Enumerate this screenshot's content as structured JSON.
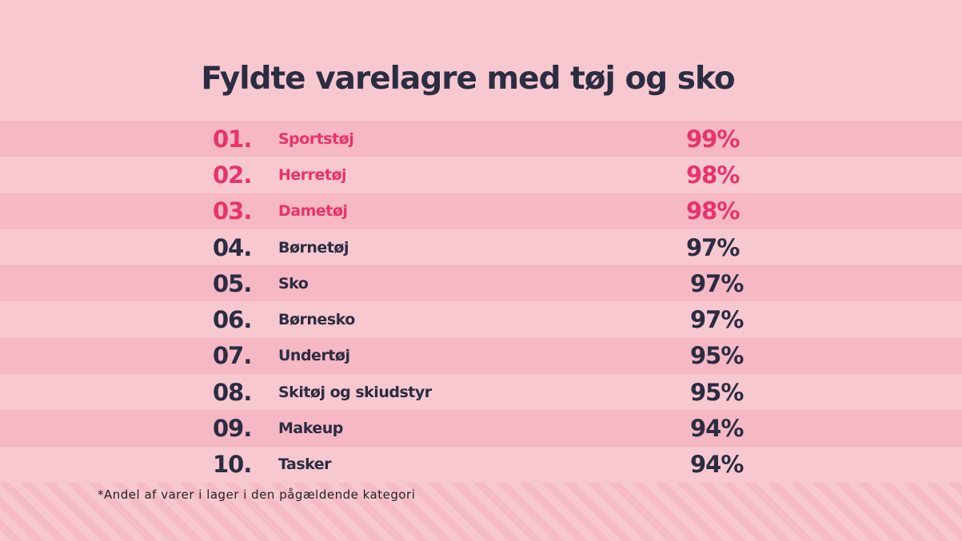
{
  "chart_data": {
    "type": "table",
    "title": "Fyldte varelagre med tøj og sko",
    "rows": [
      {
        "rank": "01.",
        "category": "Sportstøj",
        "value": "99%"
      },
      {
        "rank": "02.",
        "category": "Herretøj",
        "value": "98%"
      },
      {
        "rank": "03.",
        "category": "Dametøj",
        "value": "98%"
      },
      {
        "rank": "04.",
        "category": "Børnetøj",
        "value": "97%"
      },
      {
        "rank": "05.",
        "category": "Sko",
        "value": "97%"
      },
      {
        "rank": "06.",
        "category": "Børnesko",
        "value": "97%"
      },
      {
        "rank": "07.",
        "category": "Undertøj",
        "value": "95%"
      },
      {
        "rank": "08.",
        "category": "Skitøj og skiudstyr",
        "value": "95%"
      },
      {
        "rank": "09.",
        "category": "Makeup",
        "value": "94%"
      },
      {
        "rank": "10.",
        "category": "Tasker",
        "value": "94%"
      }
    ],
    "values": [
      99,
      98,
      98,
      97,
      97,
      97,
      95,
      95,
      94,
      94
    ],
    "highlighted_top": 3,
    "footnote": "*Andel af varer i lager i den pågældende kategori"
  },
  "colors": {
    "background": "#f8c8d1",
    "row_alt": "#f5b8c4",
    "highlight": "#e8336d",
    "text": "#2b2d42"
  }
}
